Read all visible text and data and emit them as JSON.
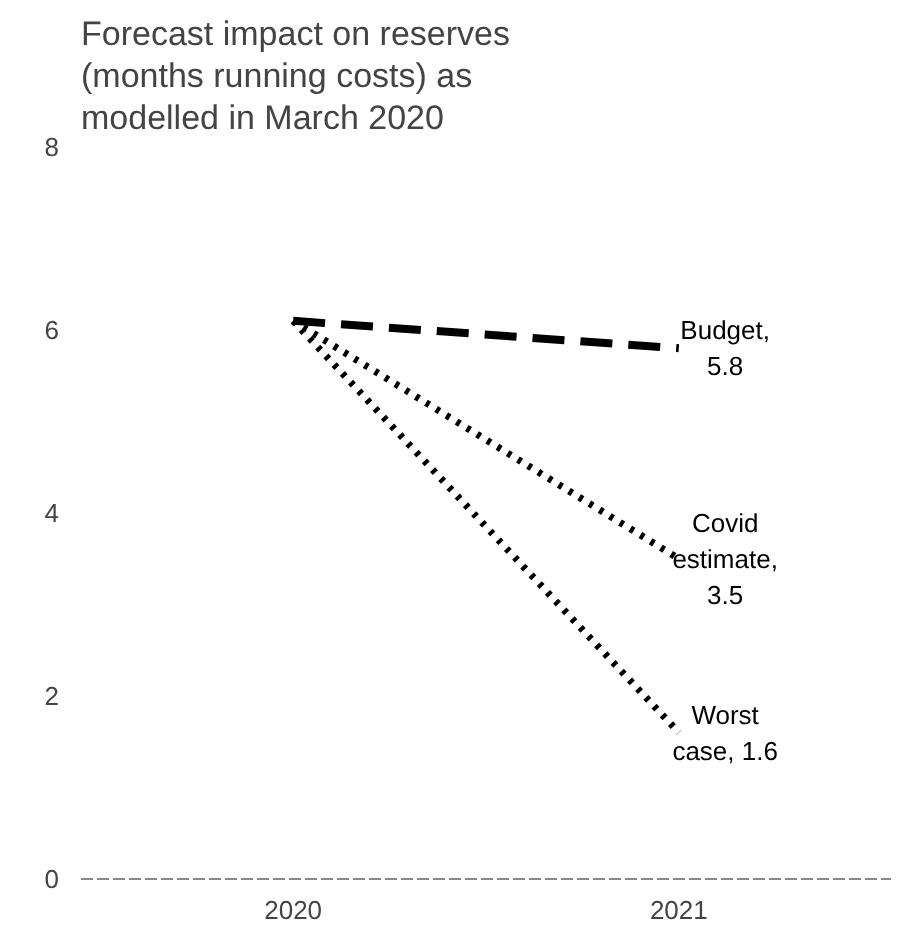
{
  "chart_data": {
    "type": "line",
    "title": "Forecast impact on reserves (months running costs) as modelled in March 2020",
    "categories": [
      "2020",
      "2021"
    ],
    "series": [
      {
        "color": "#000000",
        "values": [
          6.1,
          5.8
        ],
        "line_style": "dashed"
      },
      {
        "color": "#000000",
        "values": [
          6.1,
          3.5
        ],
        "line_style": "dotted"
      },
      {
        "color": "#000000",
        "values": [
          6.1,
          1.6
        ],
        "line_style": "dotted"
      }
    ],
    "annotations": [
      {
        "text": "Budget, 5.8",
        "x": "2021",
        "y": 5.8
      },
      {
        "text": "Covid estimate, 3.5",
        "x": "2021",
        "y": 3.5
      },
      {
        "text": "Worst case, 1.6",
        "x": "2021",
        "y": 1.6
      }
    ],
    "ylim": [
      0,
      8
    ],
    "yticks": [
      0,
      2,
      4,
      6,
      8
    ],
    "grid": false,
    "marker": "none"
  }
}
